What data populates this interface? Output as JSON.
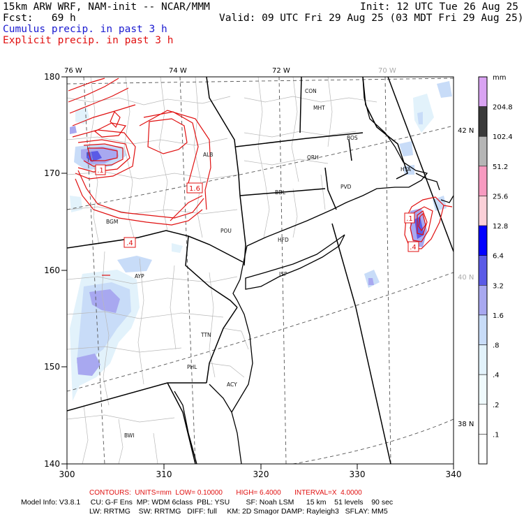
{
  "header": {
    "model": "15km ARW WRF, NAM-init -- NCAR/MMM",
    "init": "Init: 12 UTC Tue 26 Aug 25",
    "fcst": "Fcst:   69 h",
    "valid": "Valid: 09 UTC Fri 29 Aug 25 (03 MDT Fri 29 Aug 25)",
    "cumulus": "Cumulus precip. in past 3 h",
    "explicit": "Explicit precip. in past 3 h"
  },
  "axes": {
    "x_ticks": [
      "300",
      "310",
      "320",
      "330",
      "340"
    ],
    "y_ticks": [
      "180",
      "170",
      "160",
      "150",
      "140"
    ],
    "lon_labels": [
      "76 W",
      "74 W",
      "72 W",
      "70 W"
    ],
    "lat_labels": [
      "42 N",
      "40 N",
      "38 N"
    ]
  },
  "cities": [
    "CON",
    "MHT",
    "BOS",
    "ALB",
    "ORH",
    "PVD",
    "BDL",
    "BGM",
    "POU",
    "HFD",
    "AYP",
    "ISP",
    "TTN",
    "PHL",
    "ACY",
    "BWI",
    "HYA"
  ],
  "contour_labels": [
    ".1",
    "1.6",
    ".4",
    ".1",
    ".4"
  ],
  "colorbar": {
    "unit": "mm",
    "labels": [
      "204.8",
      "102.4",
      "51.2",
      "25.6",
      "12.8",
      "6.4",
      "3.2",
      "1.6",
      ".8",
      ".4",
      ".2",
      ".1"
    ],
    "colors": [
      "#d9a3f2",
      "#3a3a3a",
      "#b5b5b5",
      "#f79ac0",
      "#fbd0d8",
      "#0000ff",
      "#5a5ae6",
      "#a8a8f0",
      "#c8dcf8",
      "#e2f2fb",
      "#f0fafd",
      "#ffffff",
      "#ffffff"
    ]
  },
  "footer": {
    "contours": "CONTOURS:  UNITS=mm  LOW= 0.10000       HIGH= 6.4000       INTERVAL=X  4.0000",
    "model_info_1": "Model Info: V3.8.1     CU: G-F Ens  MP: WDM 6class  PBL: YSU        SF: Noah LSM      15 km    51 levels    90 sec",
    "model_info_2": "LW: RRTMG    SW: RRTMG   DIFF: full     KM: 2D Smagor DAMP: Rayleigh3   SFLAY: MM5"
  }
}
